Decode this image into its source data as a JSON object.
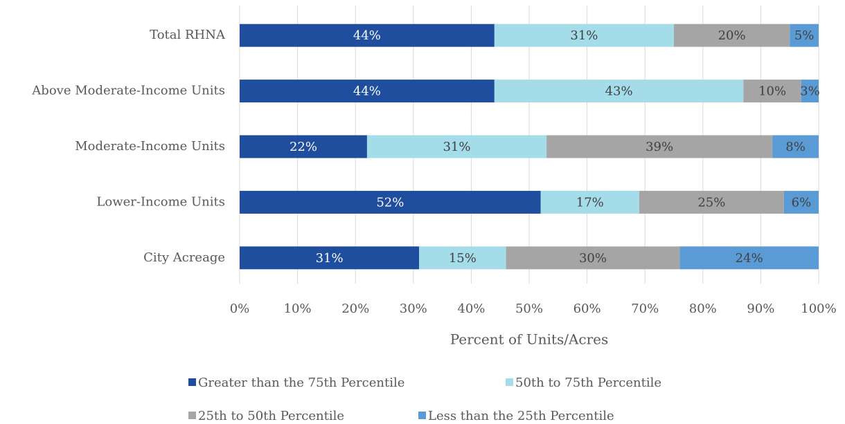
{
  "chart_data": {
    "type": "stacked-bar-horizontal",
    "categories": [
      "Total RHNA",
      "Above Moderate-Income Units",
      "Moderate-Income Units",
      "Lower-Income Units",
      "City Acreage"
    ],
    "series": [
      {
        "name": "Greater than the 75th Percentile",
        "color": "#1f4e9e",
        "values": [
          44,
          44,
          22,
          52,
          31
        ],
        "value_labels": [
          "44%",
          "44%",
          "22%",
          "52%",
          "31%"
        ]
      },
      {
        "name": "50th to 75th Percentile",
        "color": "#a4dcea",
        "values": [
          31,
          43,
          31,
          17,
          15
        ],
        "value_labels": [
          "31%",
          "43%",
          "31%",
          "17%",
          "15%"
        ]
      },
      {
        "name": "25th to 50th Percentile",
        "color": "#a5a5a5",
        "values": [
          20,
          10,
          39,
          25,
          30
        ],
        "value_labels": [
          "20%",
          "10%",
          "39%",
          "25%",
          "30%"
        ]
      },
      {
        "name": "Less than the 25th Percentile",
        "color": "#5b9bd5",
        "values": [
          5,
          3,
          8,
          6,
          24
        ],
        "value_labels": [
          "5%",
          "3%",
          "8%",
          "6%",
          "24%"
        ]
      }
    ],
    "x_label": "Percent of Units/Acres",
    "xlim": [
      0,
      100
    ],
    "xticks": [
      {
        "value": 0,
        "label": "0%"
      },
      {
        "value": 10,
        "label": "10%"
      },
      {
        "value": 20,
        "label": "20%"
      },
      {
        "value": 30,
        "label": "30%"
      },
      {
        "value": 40,
        "label": "40%"
      },
      {
        "value": 50,
        "label": "50%"
      },
      {
        "value": 60,
        "label": "60%"
      },
      {
        "value": 70,
        "label": "70%"
      },
      {
        "value": 80,
        "label": "80%"
      },
      {
        "value": 90,
        "label": "90%"
      },
      {
        "value": 100,
        "label": "100%"
      }
    ],
    "grid": true,
    "legend": "bottom"
  }
}
